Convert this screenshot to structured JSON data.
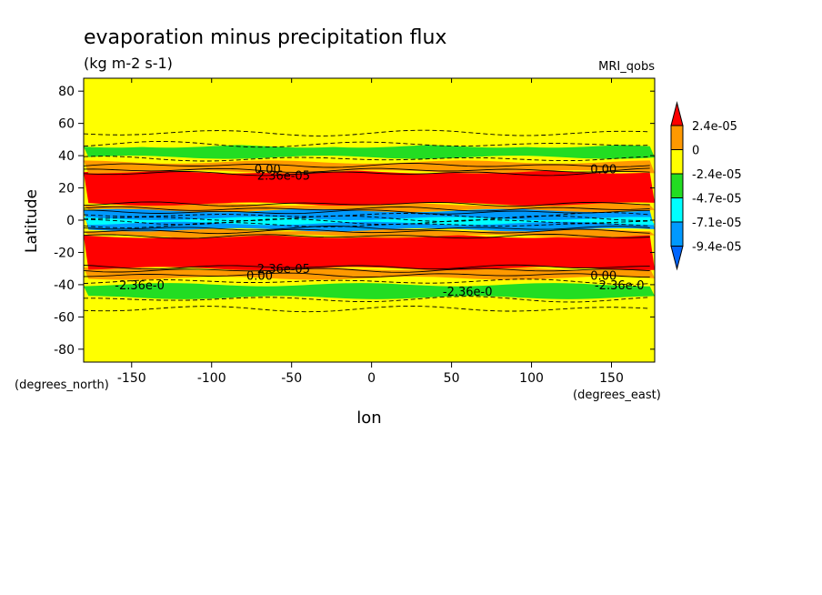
{
  "chart_data": {
    "type": "heatmap",
    "title": "evaporation minus precipitation flux",
    "units": "(kg m-2 s-1)",
    "model_label": "MRI_qobs",
    "xlabel": "lon",
    "ylabel": "Latitude",
    "x_units": "(degrees_east)",
    "y_units": "(degrees_north)",
    "xlim": [
      -180,
      177
    ],
    "ylim": [
      -88,
      88
    ],
    "x_ticks": [
      -150,
      -100,
      -50,
      0,
      50,
      100,
      150
    ],
    "x_tick_labels": [
      "-150",
      "-100",
      "-50",
      "0",
      "50",
      "100",
      "150"
    ],
    "y_ticks": [
      80,
      60,
      40,
      20,
      0,
      -20,
      -40,
      -60,
      -80
    ],
    "y_tick_labels": [
      "80",
      "60",
      "40",
      "20",
      "0",
      "-20",
      "-40",
      "-60",
      "-80"
    ],
    "grid": false,
    "legend": {
      "placement": "right",
      "levels": [
        "2.4e-05",
        "0",
        "-2.4e-05",
        "-4.7e-05",
        "-7.1e-05",
        "-9.4e-05"
      ],
      "colors": [
        "#ff0000",
        "#ff9900",
        "#ffff00",
        "#22dd22",
        "#00ffff",
        "#0099ff",
        "#0066ff"
      ]
    },
    "bands": [
      {
        "lat_range": [
          -88,
          -56
        ],
        "color": "#ffff00"
      },
      {
        "lat_range": [
          -48,
          -40
        ],
        "color": "#22dd22"
      },
      {
        "lat_range": [
          -36,
          -30
        ],
        "color": "#ff9900"
      },
      {
        "lat_range": [
          -30,
          -10
        ],
        "color": "#ff0000"
      },
      {
        "lat_range": [
          -10,
          -6
        ],
        "color": "#ff9900"
      },
      {
        "lat_range": [
          -6,
          6
        ],
        "color": "#0099ff"
      },
      {
        "lat_range": [
          -2,
          1
        ],
        "color": "#00ffff"
      },
      {
        "lat_range": [
          6,
          10
        ],
        "color": "#ff9900"
      },
      {
        "lat_range": [
          10,
          30
        ],
        "color": "#ff0000"
      },
      {
        "lat_range": [
          30,
          36
        ],
        "color": "#ff9900"
      },
      {
        "lat_range": [
          39,
          46
        ],
        "color": "#22dd22"
      },
      {
        "lat_range": [
          46,
          88
        ],
        "color": "#ffff00"
      }
    ],
    "contour_labels": [
      {
        "text": "0.00",
        "lon": -65,
        "lat": 32
      },
      {
        "text": "2.36e-05",
        "lon": -55,
        "lat": 28
      },
      {
        "text": "0.00",
        "lon": 145,
        "lat": 32
      },
      {
        "text": "0.00",
        "lon": 145,
        "lat": -34
      },
      {
        "text": "2.36e-05",
        "lon": -55,
        "lat": -30
      },
      {
        "text": "0.00",
        "lon": -70,
        "lat": -34
      },
      {
        "text": "-2.36e-0",
        "lon": -145,
        "lat": -40
      },
      {
        "text": "-2.36e-0",
        "lon": 60,
        "lat": -44
      },
      {
        "text": "-2.36e-0",
        "lon": 155,
        "lat": -40
      }
    ]
  }
}
